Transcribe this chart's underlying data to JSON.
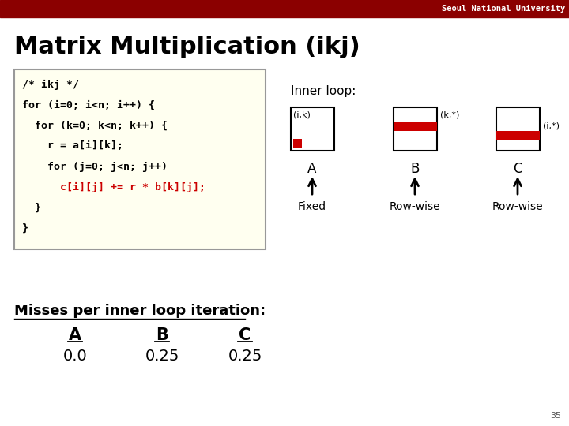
{
  "title": "Matrix Multiplication (ikj)",
  "header_text": "Seoul National University",
  "header_bg": "#8B0000",
  "header_text_color": "#FFFFFF",
  "bg_color": "#FFFFFF",
  "code_bg": "#FFFFF0",
  "inner_loop_label": "Inner loop:",
  "matrix_A_label": "(i,k)",
  "matrix_B_label": "(k,*)",
  "matrix_C_label": "(i,*)",
  "matrix_A_name": "A",
  "matrix_B_name": "B",
  "matrix_C_name": "C",
  "fixed_label": "Fixed",
  "rowwise_label1": "Row-wise",
  "rowwise_label2": "Row-wise",
  "misses_title": "Misses per inner loop iteration:",
  "miss_A_label": "A",
  "miss_B_label": "B",
  "miss_C_label": "C",
  "miss_A_val": "0.0",
  "miss_B_val": "0.25",
  "miss_C_val": "0.25",
  "slide_number": "35",
  "red_color": "#CC0000",
  "box_color": "#000000"
}
